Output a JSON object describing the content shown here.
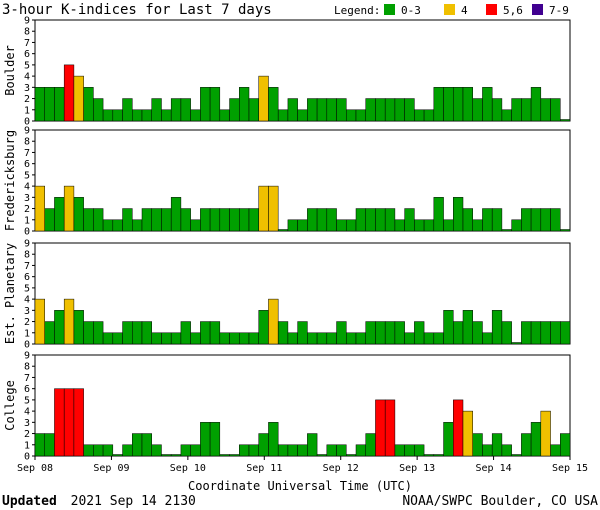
{
  "chart_data": {
    "type": "bar",
    "title": "3-hour K-indices for Last 7 days",
    "xlabel": "Coordinate Universal Time (UTC)",
    "ylim": [
      0,
      9
    ],
    "yticks": [
      "0",
      "1",
      "2",
      "3",
      "4",
      "5",
      "6",
      "7",
      "8",
      "9"
    ],
    "x_ticks": [
      "Sep 08",
      "Sep 09",
      "Sep 10",
      "Sep 11",
      "Sep 12",
      "Sep 13",
      "Sep 14",
      "Sep 15"
    ],
    "legend": {
      "label": "Legend:",
      "items": [
        {
          "label": "0-3",
          "color": "#00a000"
        },
        {
          "label": "4",
          "color": "#f0c000"
        },
        {
          "label": "5,6",
          "color": "#ff0000"
        },
        {
          "label": "7-9",
          "color": "#400090"
        }
      ]
    },
    "series": [
      {
        "name": "Boulder",
        "values": [
          3,
          3,
          3,
          5,
          4,
          3,
          2,
          1,
          1,
          2,
          1,
          1,
          2,
          1,
          2,
          2,
          1,
          3,
          3,
          1,
          2,
          3,
          2,
          4,
          3,
          1,
          2,
          1,
          2,
          2,
          2,
          2,
          1,
          1,
          2,
          2,
          2,
          2,
          2,
          1,
          1,
          3,
          3,
          3,
          3,
          2,
          3,
          2,
          1,
          2,
          2,
          3,
          2,
          2,
          0
        ]
      },
      {
        "name": "Fredericksburg",
        "values": [
          4,
          2,
          3,
          4,
          3,
          2,
          2,
          1,
          1,
          2,
          1,
          2,
          2,
          2,
          3,
          2,
          1,
          2,
          2,
          2,
          2,
          2,
          2,
          4,
          4,
          0,
          1,
          1,
          2,
          2,
          2,
          1,
          1,
          2,
          2,
          2,
          2,
          1,
          2,
          1,
          1,
          3,
          1,
          3,
          2,
          1,
          2,
          2,
          0,
          1,
          2,
          2,
          2,
          2,
          0
        ]
      },
      {
        "name": "Est. Planetary",
        "values": [
          4,
          2,
          3,
          4,
          3,
          2,
          2,
          1,
          1,
          2,
          2,
          2,
          1,
          1,
          1,
          2,
          1,
          2,
          2,
          1,
          1,
          1,
          1,
          3,
          4,
          2,
          1,
          2,
          1,
          1,
          1,
          2,
          1,
          1,
          2,
          2,
          2,
          2,
          1,
          2,
          1,
          1,
          3,
          2,
          3,
          2,
          1,
          3,
          2,
          0,
          2,
          2,
          2,
          2,
          2
        ]
      },
      {
        "name": "College",
        "values": [
          2,
          2,
          6,
          6,
          6,
          1,
          1,
          1,
          0,
          1,
          2,
          2,
          1,
          0,
          0,
          1,
          1,
          3,
          3,
          0,
          0,
          1,
          1,
          2,
          3,
          1,
          1,
          1,
          2,
          0,
          1,
          1,
          0,
          1,
          2,
          5,
          5,
          1,
          1,
          1,
          0,
          0,
          3,
          5,
          4,
          2,
          1,
          2,
          1,
          0,
          2,
          3,
          4,
          1,
          2
        ]
      }
    ]
  },
  "footer": {
    "updated_label": "Updated",
    "updated_value": "2021 Sep 14 2130",
    "credit": "NOAA/SWPC Boulder, CO USA"
  }
}
